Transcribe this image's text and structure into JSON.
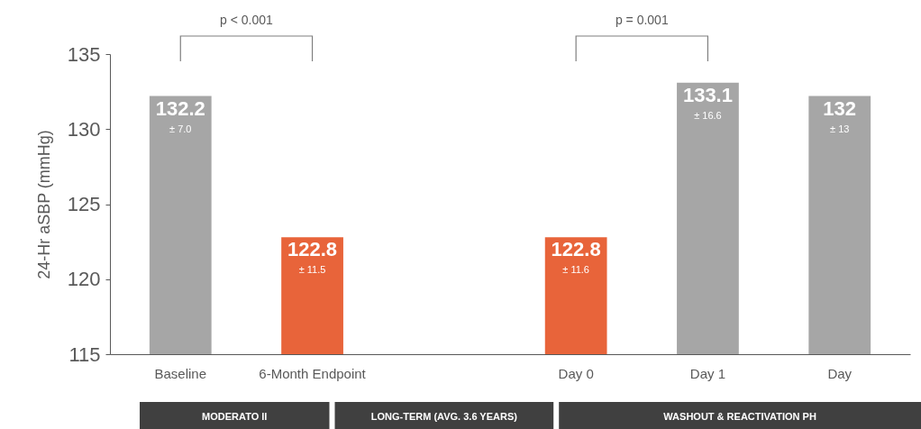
{
  "chart_data": {
    "type": "bar",
    "ylabel": "24-Hr aSBP (mmHg)",
    "categories": [
      "Baseline",
      "6-Month Endpoint",
      null,
      "Day 0",
      "Day 1",
      "Day"
    ],
    "values": [
      132.2,
      122.8,
      null,
      122.8,
      133.1,
      132.2
    ],
    "colors": [
      "#a6a6a6",
      "#e8643a",
      null,
      "#e8643a",
      "#a6a6a6",
      "#a6a6a6"
    ],
    "value_labels": [
      "132.2",
      "122.8",
      null,
      "122.8",
      "133.1",
      "132"
    ],
    "ylim": [
      115,
      135
    ],
    "yticks": [
      115,
      120,
      125,
      130,
      135
    ],
    "grid": false,
    "annotations": [
      "p < 0.001",
      "p = 0.001",
      "MODERATO II",
      "LONG-TERM  (AVG. 3.6 YEARS)",
      "WASHOUT & REACTIVATION PH",
      {
        "text": "± 7.0",
        "x": "Baseline",
        "y": 132.2
      },
      {
        "text": "± 11.5",
        "x": "6-Month Endpoint",
        "y": 122.8
      },
      {
        "text": "± 11.6",
        "x": "Day 0",
        "y": 122.8
      },
      {
        "text": "± 16.6",
        "x": "Day 1",
        "y": 133.1
      },
      {
        "text": "± 13",
        "x": "Day",
        "y": 132.2
      }
    ]
  }
}
